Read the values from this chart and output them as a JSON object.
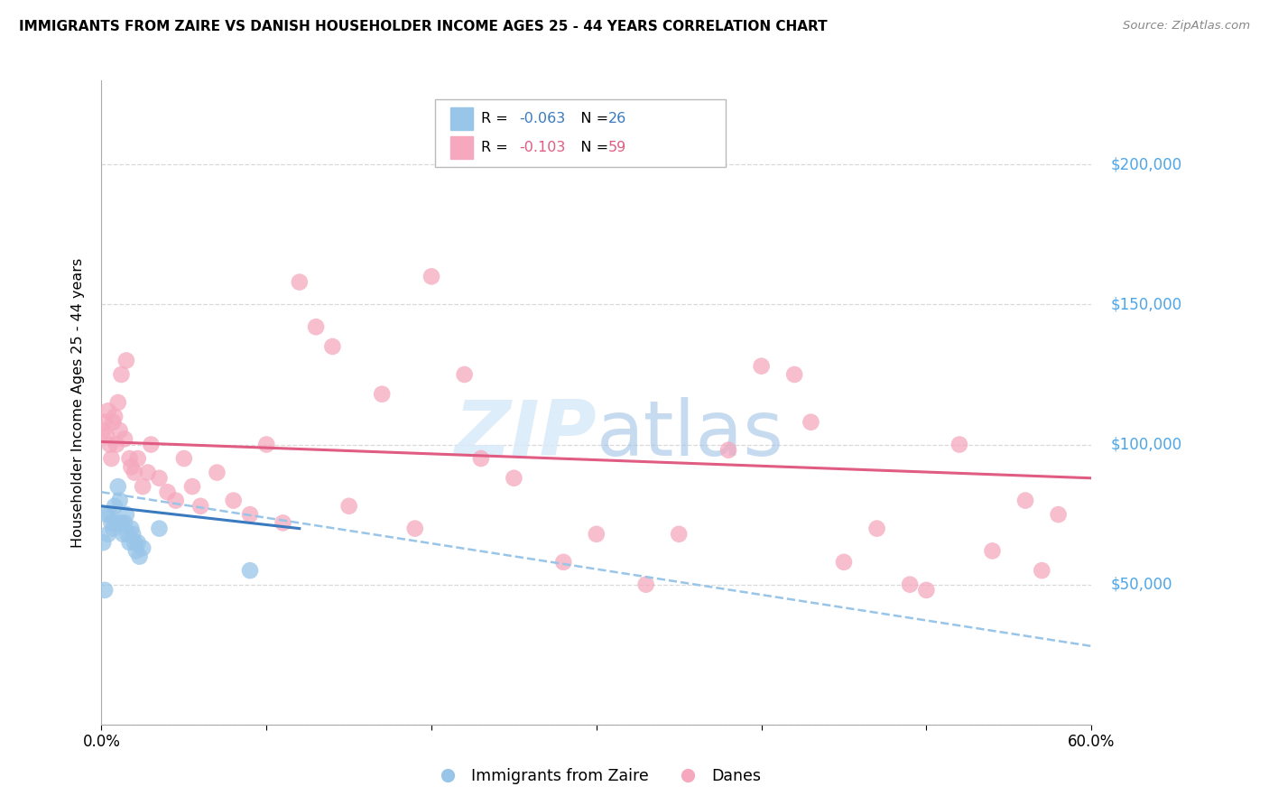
{
  "title": "IMMIGRANTS FROM ZAIRE VS DANISH HOUSEHOLDER INCOME AGES 25 - 44 YEARS CORRELATION CHART",
  "source": "Source: ZipAtlas.com",
  "ylabel": "Householder Income Ages 25 - 44 years",
  "legend_label1": "Immigrants from Zaire",
  "legend_label2": "Danes",
  "r1": "-0.063",
  "n1": "26",
  "r2": "-0.103",
  "n2": "59",
  "blue_scatter_x": [
    0.1,
    0.2,
    0.3,
    0.4,
    0.5,
    0.6,
    0.7,
    0.8,
    0.9,
    1.0,
    1.1,
    1.2,
    1.3,
    1.4,
    1.5,
    1.6,
    1.7,
    1.8,
    1.9,
    2.0,
    2.1,
    2.2,
    2.3,
    2.5,
    3.5,
    9.0
  ],
  "blue_scatter_y": [
    65000,
    48000,
    75000,
    68000,
    75000,
    72000,
    70000,
    78000,
    72000,
    85000,
    80000,
    72000,
    68000,
    72000,
    75000,
    68000,
    65000,
    70000,
    68000,
    65000,
    62000,
    65000,
    60000,
    63000,
    70000,
    55000
  ],
  "pink_scatter_x": [
    0.1,
    0.2,
    0.3,
    0.4,
    0.5,
    0.6,
    0.7,
    0.8,
    0.9,
    1.0,
    1.1,
    1.2,
    1.4,
    1.5,
    1.7,
    1.8,
    2.0,
    2.2,
    2.5,
    2.8,
    3.0,
    3.5,
    4.0,
    4.5,
    5.0,
    5.5,
    6.0,
    7.0,
    8.0,
    9.0,
    10.0,
    11.0,
    12.0,
    13.0,
    14.0,
    15.0,
    17.0,
    19.0,
    20.0,
    22.0,
    23.0,
    25.0,
    28.0,
    30.0,
    33.0,
    35.0,
    38.0,
    40.0,
    42.0,
    43.0,
    45.0,
    47.0,
    49.0,
    50.0,
    52.0,
    54.0,
    56.0,
    57.0,
    58.0
  ],
  "pink_scatter_y": [
    105000,
    108000,
    103000,
    112000,
    100000,
    95000,
    108000,
    110000,
    100000,
    115000,
    105000,
    125000,
    102000,
    130000,
    95000,
    92000,
    90000,
    95000,
    85000,
    90000,
    100000,
    88000,
    83000,
    80000,
    95000,
    85000,
    78000,
    90000,
    80000,
    75000,
    100000,
    72000,
    158000,
    142000,
    135000,
    78000,
    118000,
    70000,
    160000,
    125000,
    95000,
    88000,
    58000,
    68000,
    50000,
    68000,
    98000,
    128000,
    125000,
    108000,
    58000,
    70000,
    50000,
    48000,
    100000,
    62000,
    80000,
    55000,
    75000
  ],
  "blue_line_x": [
    0.0,
    12.0
  ],
  "blue_line_y": [
    78000,
    70000
  ],
  "pink_line_x": [
    0.0,
    60.0
  ],
  "pink_line_y": [
    101000,
    88000
  ],
  "blue_dash_line_x": [
    0.0,
    60.0
  ],
  "blue_dash_line_y": [
    83000,
    28000
  ],
  "y_ticks": [
    0,
    50000,
    100000,
    150000,
    200000
  ],
  "y_tick_labels": [
    "",
    "$50,000",
    "$100,000",
    "$150,000",
    "$200,000"
  ],
  "x_ticks": [
    0,
    10,
    20,
    30,
    40,
    50,
    60
  ],
  "x_tick_labels": [
    "0.0%",
    "",
    "",
    "",
    "",
    "",
    "60.0%"
  ],
  "blue_color": "#99c5e8",
  "blue_line_color": "#3a7abf",
  "pink_color": "#f5a8be",
  "pink_line_color": "#e05c82",
  "blue_dash_color": "#99c5e8",
  "right_label_color": "#4da6e8",
  "background_color": "#ffffff",
  "grid_color": "#d0d0d0"
}
